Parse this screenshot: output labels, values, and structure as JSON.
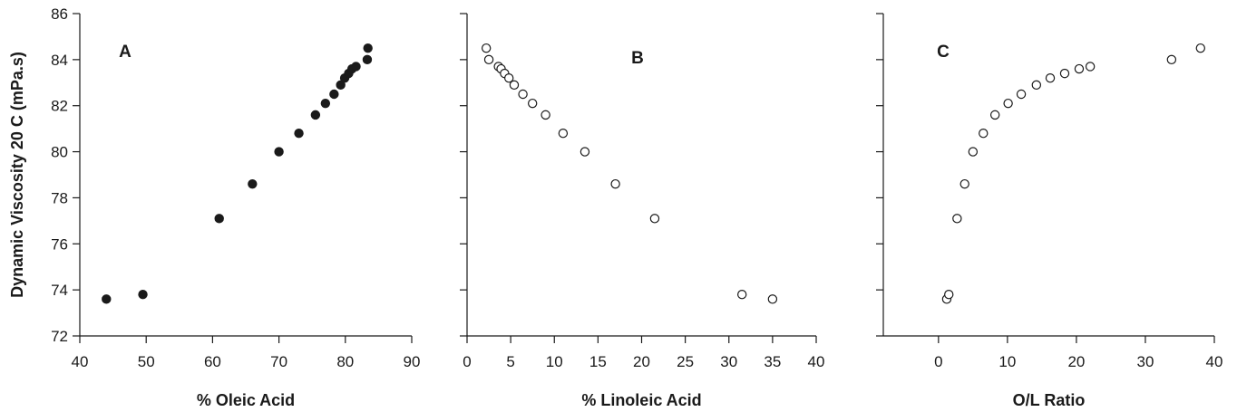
{
  "ylabel": "Dynamic Viscosity 20 C (mPa.s)",
  "chart_data": [
    {
      "type": "scatter",
      "panel_label": "A",
      "xlabel": "% Oleic Acid",
      "xlim": [
        40,
        90
      ],
      "xticks": [
        "40",
        "50",
        "60",
        "70",
        "80",
        "90"
      ],
      "ylim": [
        72,
        86
      ],
      "yticks": [
        "72",
        "74",
        "76",
        "78",
        "80",
        "82",
        "84",
        "86"
      ],
      "marker": "filled-circle",
      "marker_color": "#1a1a1a",
      "grid": false,
      "x": [
        44.0,
        49.5,
        61.0,
        66.0,
        70.0,
        73.0,
        75.5,
        77.0,
        78.3,
        79.3,
        79.9,
        80.5,
        81.0,
        81.6,
        83.3,
        83.4
      ],
      "y": [
        73.6,
        73.8,
        77.1,
        78.6,
        80.0,
        80.8,
        81.6,
        82.1,
        82.5,
        82.9,
        83.2,
        83.4,
        83.6,
        83.7,
        84.0,
        84.5
      ]
    },
    {
      "type": "scatter",
      "panel_label": "B",
      "xlabel": "% Linoleic Acid",
      "xlim": [
        0,
        40
      ],
      "xticks": [
        "0",
        "5",
        "10",
        "15",
        "20",
        "25",
        "30",
        "35",
        "40"
      ],
      "ylim": [
        72,
        86
      ],
      "marker": "open-circle",
      "marker_color": "#1a1a1a",
      "grid": false,
      "x": [
        2.2,
        2.5,
        3.6,
        3.9,
        4.3,
        4.8,
        5.4,
        6.4,
        7.5,
        9.0,
        11.0,
        13.5,
        17.0,
        21.5,
        31.5,
        35.0
      ],
      "y": [
        84.5,
        84.0,
        83.7,
        83.6,
        83.4,
        83.2,
        82.9,
        82.5,
        82.1,
        81.6,
        80.8,
        80.0,
        78.6,
        77.1,
        73.8,
        73.6
      ]
    },
    {
      "type": "scatter",
      "panel_label": "C",
      "xlabel": "O/L Ratio",
      "xlim": [
        -8,
        40
      ],
      "xticks": [
        "0",
        "10",
        "20",
        "30",
        "40"
      ],
      "xtick_values": [
        0,
        10,
        20,
        30,
        40
      ],
      "ylim": [
        72,
        86
      ],
      "marker": "open-circle",
      "marker_color": "#1a1a1a",
      "grid": false,
      "x": [
        1.2,
        1.5,
        2.7,
        3.8,
        5.0,
        6.5,
        8.2,
        10.1,
        12.0,
        14.2,
        16.2,
        18.3,
        20.4,
        22.0,
        33.8,
        38.0
      ],
      "y": [
        73.6,
        73.8,
        77.1,
        78.6,
        80.0,
        80.8,
        81.6,
        82.1,
        82.5,
        82.9,
        83.2,
        83.4,
        83.6,
        83.7,
        84.0,
        84.5
      ]
    }
  ]
}
